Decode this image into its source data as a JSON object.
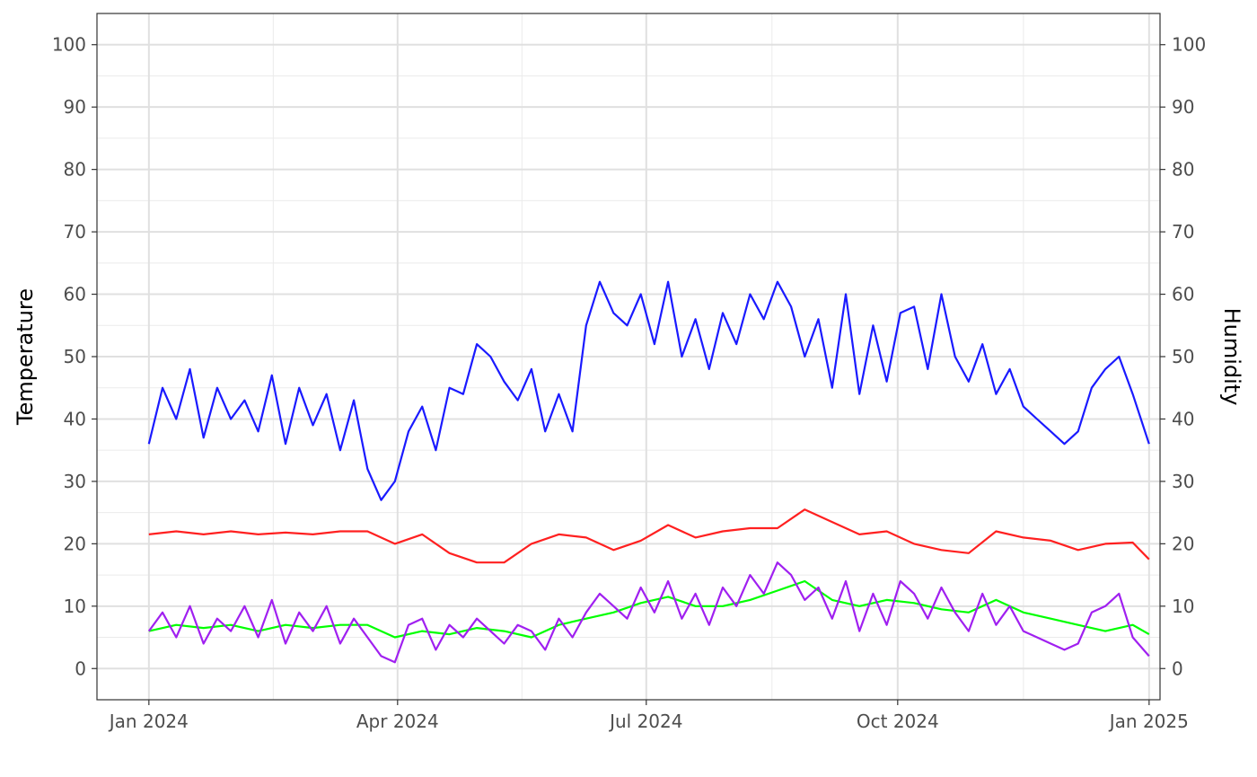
{
  "chart_data": {
    "type": "line",
    "title": "",
    "xlabel": "",
    "ylabel": "Temperature",
    "y2label": "Humidity",
    "xlim": [
      "2023-12-13",
      "2025-01-05"
    ],
    "ylim": [
      -5,
      105
    ],
    "y2lim": [
      -5,
      105
    ],
    "x_ticks": [
      "2024-01-01",
      "2024-04-01",
      "2024-07-01",
      "2024-10-01",
      "2025-01-01"
    ],
    "x_tick_labels": [
      "Jan 2024",
      "Apr 2024",
      "Jul 2024",
      "Oct 2024",
      "Jan 2025"
    ],
    "y_ticks": [
      0,
      10,
      20,
      30,
      40,
      50,
      60,
      70,
      80,
      90,
      100
    ],
    "y_tick_labels": [
      "0",
      "10",
      "20",
      "30",
      "40",
      "50",
      "60",
      "70",
      "80",
      "90",
      "100"
    ],
    "y2_ticks": [
      0,
      10,
      20,
      30,
      40,
      50,
      60,
      70,
      80,
      90,
      100
    ],
    "y2_tick_labels": [
      "0",
      "10",
      "20",
      "30",
      "40",
      "50",
      "60",
      "70",
      "80",
      "90",
      "100"
    ],
    "grid": true,
    "legend": "none",
    "series": [
      {
        "color": "#1a1aff",
        "axis": "right",
        "x": [
          "2024-01-01",
          "2024-01-06",
          "2024-01-11",
          "2024-01-16",
          "2024-01-21",
          "2024-01-26",
          "2024-01-31",
          "2024-02-05",
          "2024-02-10",
          "2024-02-15",
          "2024-02-20",
          "2024-02-25",
          "2024-03-01",
          "2024-03-06",
          "2024-03-11",
          "2024-03-16",
          "2024-03-21",
          "2024-03-26",
          "2024-03-31",
          "2024-04-05",
          "2024-04-10",
          "2024-04-15",
          "2024-04-20",
          "2024-04-25",
          "2024-04-30",
          "2024-05-05",
          "2024-05-10",
          "2024-05-15",
          "2024-05-20",
          "2024-05-25",
          "2024-05-30",
          "2024-06-04",
          "2024-06-09",
          "2024-06-14",
          "2024-06-19",
          "2024-06-24",
          "2024-06-29",
          "2024-07-04",
          "2024-07-09",
          "2024-07-14",
          "2024-07-19",
          "2024-07-24",
          "2024-07-29",
          "2024-08-03",
          "2024-08-08",
          "2024-08-13",
          "2024-08-18",
          "2024-08-23",
          "2024-08-28",
          "2024-09-02",
          "2024-09-07",
          "2024-09-12",
          "2024-09-17",
          "2024-09-22",
          "2024-09-27",
          "2024-10-02",
          "2024-10-07",
          "2024-10-12",
          "2024-10-17",
          "2024-10-22",
          "2024-10-27",
          "2024-11-01",
          "2024-11-06",
          "2024-11-11",
          "2024-11-16",
          "2024-11-21",
          "2024-11-26",
          "2024-12-01",
          "2024-12-06",
          "2024-12-11",
          "2024-12-16",
          "2024-12-21",
          "2024-12-26",
          "2025-01-01"
        ],
        "values": [
          36,
          45,
          40,
          48,
          37,
          45,
          40,
          43,
          38,
          47,
          36,
          45,
          39,
          44,
          35,
          43,
          32,
          27,
          30,
          38,
          42,
          35,
          45,
          44,
          52,
          50,
          46,
          43,
          48,
          38,
          44,
          38,
          55,
          62,
          57,
          55,
          60,
          52,
          62,
          50,
          56,
          48,
          57,
          52,
          60,
          56,
          62,
          58,
          50,
          56,
          45,
          60,
          44,
          55,
          46,
          57,
          58,
          48,
          60,
          50,
          46,
          52,
          44,
          48,
          42,
          40,
          38,
          36,
          38,
          45,
          48,
          50,
          44,
          36
        ]
      },
      {
        "color": "#ff2020",
        "axis": "left",
        "x": [
          "2024-01-01",
          "2024-01-11",
          "2024-01-21",
          "2024-01-31",
          "2024-02-10",
          "2024-02-20",
          "2024-03-01",
          "2024-03-11",
          "2024-03-21",
          "2024-03-31",
          "2024-04-10",
          "2024-04-20",
          "2024-04-30",
          "2024-05-10",
          "2024-05-20",
          "2024-05-30",
          "2024-06-09",
          "2024-06-19",
          "2024-06-29",
          "2024-07-09",
          "2024-07-19",
          "2024-07-29",
          "2024-08-08",
          "2024-08-18",
          "2024-08-28",
          "2024-09-07",
          "2024-09-17",
          "2024-09-27",
          "2024-10-07",
          "2024-10-17",
          "2024-10-27",
          "2024-11-06",
          "2024-11-16",
          "2024-11-26",
          "2024-12-06",
          "2024-12-16",
          "2024-12-26",
          "2025-01-01"
        ],
        "values": [
          21.5,
          22,
          21.5,
          22,
          21.5,
          21.8,
          21.5,
          22,
          22,
          20,
          21.5,
          18.5,
          17,
          17,
          20,
          21.5,
          21,
          19,
          20.5,
          23,
          21,
          22,
          22.5,
          22.5,
          25.5,
          23.5,
          21.5,
          22,
          20,
          19,
          18.5,
          22,
          21,
          20.5,
          19,
          20,
          20.2,
          17.5
        ]
      },
      {
        "color": "#00ff00",
        "axis": "left",
        "x": [
          "2024-01-01",
          "2024-01-11",
          "2024-01-21",
          "2024-01-31",
          "2024-02-10",
          "2024-02-20",
          "2024-03-01",
          "2024-03-11",
          "2024-03-21",
          "2024-03-31",
          "2024-04-10",
          "2024-04-20",
          "2024-04-30",
          "2024-05-10",
          "2024-05-20",
          "2024-05-30",
          "2024-06-09",
          "2024-06-19",
          "2024-06-29",
          "2024-07-09",
          "2024-07-19",
          "2024-07-29",
          "2024-08-08",
          "2024-08-18",
          "2024-08-28",
          "2024-09-07",
          "2024-09-17",
          "2024-09-27",
          "2024-10-07",
          "2024-10-17",
          "2024-10-27",
          "2024-11-06",
          "2024-11-16",
          "2024-11-26",
          "2024-12-06",
          "2024-12-16",
          "2024-12-26",
          "2025-01-01"
        ],
        "values": [
          6,
          7,
          6.5,
          7,
          6,
          7,
          6.5,
          7,
          7,
          5,
          6,
          5.5,
          6.5,
          6,
          5,
          7,
          8,
          9,
          10.5,
          11.5,
          10,
          10,
          11,
          12.5,
          14,
          11,
          10,
          11,
          10.5,
          9.5,
          9,
          11,
          9,
          8,
          7,
          6,
          7,
          5.5
        ]
      },
      {
        "color": "#a020f0",
        "axis": "left",
        "x": [
          "2024-01-01",
          "2024-01-06",
          "2024-01-11",
          "2024-01-16",
          "2024-01-21",
          "2024-01-26",
          "2024-01-31",
          "2024-02-05",
          "2024-02-10",
          "2024-02-15",
          "2024-02-20",
          "2024-02-25",
          "2024-03-01",
          "2024-03-06",
          "2024-03-11",
          "2024-03-16",
          "2024-03-21",
          "2024-03-26",
          "2024-03-31",
          "2024-04-05",
          "2024-04-10",
          "2024-04-15",
          "2024-04-20",
          "2024-04-25",
          "2024-04-30",
          "2024-05-05",
          "2024-05-10",
          "2024-05-15",
          "2024-05-20",
          "2024-05-25",
          "2024-05-30",
          "2024-06-04",
          "2024-06-09",
          "2024-06-14",
          "2024-06-19",
          "2024-06-24",
          "2024-06-29",
          "2024-07-04",
          "2024-07-09",
          "2024-07-14",
          "2024-07-19",
          "2024-07-24",
          "2024-07-29",
          "2024-08-03",
          "2024-08-08",
          "2024-08-13",
          "2024-08-18",
          "2024-08-23",
          "2024-08-28",
          "2024-09-02",
          "2024-09-07",
          "2024-09-12",
          "2024-09-17",
          "2024-09-22",
          "2024-09-27",
          "2024-10-02",
          "2024-10-07",
          "2024-10-12",
          "2024-10-17",
          "2024-10-22",
          "2024-10-27",
          "2024-11-01",
          "2024-11-06",
          "2024-11-11",
          "2024-11-16",
          "2024-11-21",
          "2024-11-26",
          "2024-12-01",
          "2024-12-06",
          "2024-12-11",
          "2024-12-16",
          "2024-12-21",
          "2024-12-26",
          "2025-01-01"
        ],
        "values": [
          6,
          9,
          5,
          10,
          4,
          8,
          6,
          10,
          5,
          11,
          4,
          9,
          6,
          10,
          4,
          8,
          5,
          2,
          1,
          7,
          8,
          3,
          7,
          5,
          8,
          6,
          4,
          7,
          6,
          3,
          8,
          5,
          9,
          12,
          10,
          8,
          13,
          9,
          14,
          8,
          12,
          7,
          13,
          10,
          15,
          12,
          17,
          15,
          11,
          13,
          8,
          14,
          6,
          12,
          7,
          14,
          12,
          8,
          13,
          9,
          6,
          12,
          7,
          10,
          6,
          5,
          4,
          3,
          4,
          9,
          10,
          12,
          5,
          2
        ]
      }
    ]
  }
}
